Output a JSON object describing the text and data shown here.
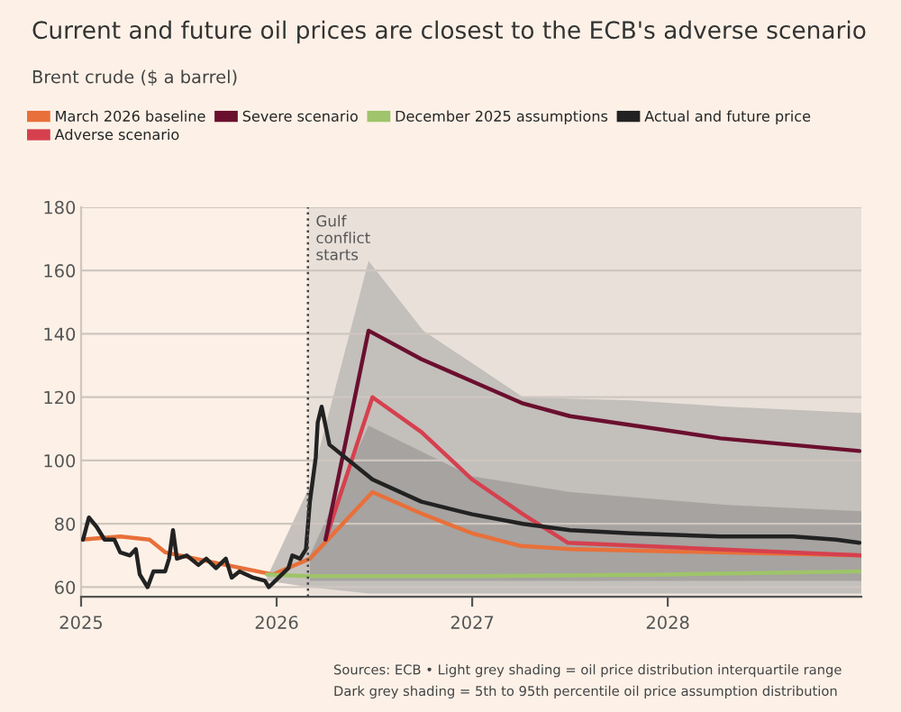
{
  "chart_data": {
    "type": "line",
    "title": "Current and future oil prices are closest to the ECB's adverse scenario",
    "subtitle": "Brent crude ($ a barrel)",
    "annotations": [
      "Sources: ECB • Light grey shading = oil price distribution interquartile range",
      "Dark grey shading = 5th to 95th percentile oil price assumption distribution"
    ],
    "xlim": [
      2025,
      2028.99
    ],
    "xticks": [
      2025,
      2026,
      2027,
      2028
    ],
    "ylim": [
      57,
      180
    ],
    "yticks": [
      60,
      80,
      100,
      120,
      140,
      160,
      180
    ],
    "grid": "y",
    "legend": "top",
    "line_style": "solid",
    "bands": [
      {
        "axis": "x",
        "from": 2026.16,
        "to": 2028.99,
        "color": "#e8e0d9"
      }
    ],
    "ref_lines": [
      {
        "axis": "x",
        "value": 2026.16,
        "label": "Gulf\nconflict\nstarts",
        "line_style": "dotted",
        "color": "#444444"
      }
    ],
    "series": [
      {
        "type": "area",
        "color": "#bcb8b5",
        "x": [
          2025.95,
          2026.17,
          2026.47,
          2026.75,
          2027.26,
          2027.81,
          2028.3,
          2028.99
        ],
        "values": [
          null,
          null,
          null,
          null,
          null,
          null,
          null,
          null
        ],
        "lower": [
          62,
          60,
          58,
          58,
          58,
          58,
          58,
          58
        ],
        "upper": [
          63,
          92,
          163,
          141,
          120,
          119,
          117,
          115
        ]
      },
      {
        "type": "area",
        "color": "#a19e9c",
        "x": [
          2026.17,
          2026.47,
          2027.0,
          2027.5,
          2028.3,
          2028.99
        ],
        "values": [
          null,
          null,
          null,
          null,
          null,
          null
        ],
        "lower": [
          62,
          62,
          62,
          62,
          62,
          62
        ],
        "upper": [
          70,
          111,
          95,
          90,
          86,
          84
        ]
      },
      {
        "name": "March 2026 baseline",
        "color": "#e8703a",
        "x": [
          2025,
          2025.2,
          2025.35,
          2025.43,
          2025.74,
          2025.98,
          2026.17,
          2026.49,
          2026.75,
          2027.0,
          2027.25,
          2027.5,
          2028.99
        ],
        "values": [
          75,
          76,
          75,
          71,
          67,
          64,
          69,
          90,
          83,
          77,
          73,
          72,
          70
        ]
      },
      {
        "name": "Adverse scenario",
        "color": "#d6404e",
        "x": [
          2026.25,
          2026.49,
          2026.74,
          2027.0,
          2027.26,
          2027.49,
          2028.99
        ],
        "values": [
          75,
          120,
          109,
          94,
          83,
          74,
          70
        ]
      },
      {
        "name": "Severe scenario",
        "color": "#6b0f2f",
        "x": [
          2026.25,
          2026.47,
          2026.74,
          2027.26,
          2027.5,
          2028.27,
          2028.98
        ],
        "values": [
          75,
          141,
          132,
          118,
          114,
          107,
          103
        ]
      },
      {
        "name": "December 2025 assumptions",
        "color": "#9fc46a",
        "x": [
          2025.95,
          2026.17,
          2027.0,
          2028.0,
          2028.98
        ],
        "values": [
          64,
          63.5,
          63.5,
          64,
          65
        ]
      },
      {
        "name": "Actual and future price",
        "color": "#222222",
        "x": [
          2025.01,
          2025.04,
          2025.08,
          2025.12,
          2025.17,
          2025.2,
          2025.25,
          2025.28,
          2025.3,
          2025.34,
          2025.37,
          2025.43,
          2025.45,
          2025.47,
          2025.49,
          2025.54,
          2025.6,
          2025.64,
          2025.69,
          2025.74,
          2025.77,
          2025.81,
          2025.88,
          2025.94,
          2025.96,
          2026.01,
          2026.06,
          2026.08,
          2026.12,
          2026.15,
          2026.17,
          2026.2,
          2026.21,
          2026.23,
          2026.27,
          2026.49,
          2026.74,
          2027.0,
          2027.26,
          2027.5,
          2027.81,
          2028.27,
          2028.64,
          2028.86,
          2028.98
        ],
        "values": [
          75,
          82,
          79,
          75,
          75,
          71,
          70,
          72,
          64,
          60,
          65,
          65,
          69,
          78,
          69,
          70,
          67,
          69,
          66,
          69,
          63,
          65,
          63,
          62,
          60,
          63,
          66,
          70,
          69,
          72,
          87,
          101,
          112,
          117,
          105,
          94,
          87,
          83,
          80,
          78,
          77,
          76,
          76,
          75,
          74
        ]
      }
    ]
  }
}
